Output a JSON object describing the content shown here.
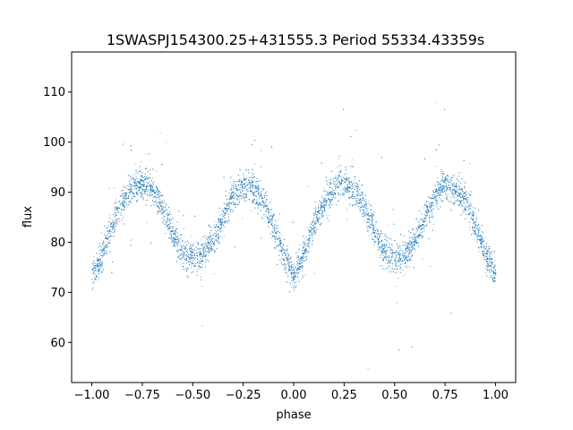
{
  "chart_data": {
    "type": "scatter",
    "title": "1SWASPJ154300.25+431555.3 Period 55334.43359s",
    "xlabel": "phase",
    "ylabel": "flux",
    "xlim": [
      -1.1,
      1.1
    ],
    "ylim": [
      52,
      118
    ],
    "xticks": [
      -1.0,
      -0.75,
      -0.5,
      -0.25,
      0.0,
      0.25,
      0.5,
      0.75,
      1.0
    ],
    "xtick_labels": [
      "−1.00",
      "−0.75",
      "−0.50",
      "−0.25",
      "0.00",
      "0.25",
      "0.50",
      "0.75",
      "1.00"
    ],
    "yticks": [
      60,
      70,
      80,
      90,
      100,
      110
    ],
    "ytick_labels": [
      "60",
      "70",
      "80",
      "90",
      "100",
      "110"
    ],
    "grid": false,
    "series": [
      {
        "color": "#1f77b4",
        "x_range": [
          -1.0,
          1.0
        ],
        "approx_points": 9000,
        "curve_phase": [
          0.0,
          0.05,
          0.1,
          0.15,
          0.2,
          0.25,
          0.3,
          0.35,
          0.4,
          0.45,
          0.5,
          0.55,
          0.6,
          0.65,
          0.7,
          0.75,
          0.8,
          0.85,
          0.9,
          0.95,
          1.0
        ],
        "curve_flux": [
          73.5,
          77.5,
          83.5,
          88.0,
          91.0,
          92.0,
          90.5,
          87.0,
          82.0,
          78.0,
          77.0,
          77.5,
          80.5,
          85.0,
          89.5,
          91.5,
          91.0,
          88.0,
          83.0,
          77.5,
          73.5
        ],
        "scatter_sigma": 1.5
      }
    ]
  }
}
